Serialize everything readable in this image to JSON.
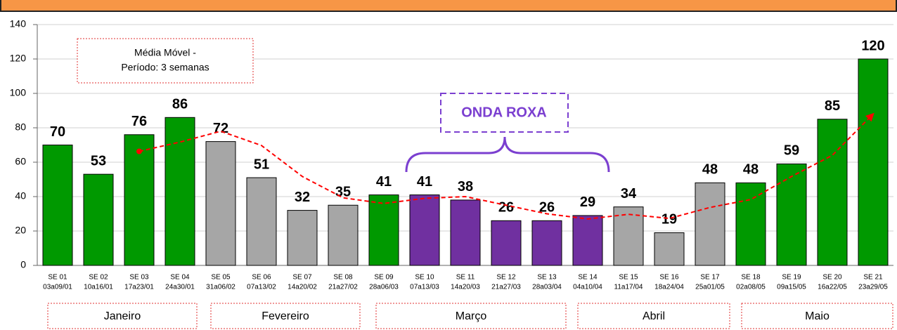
{
  "chart_data": {
    "type": "bar",
    "categories": [
      "SE 01",
      "SE 02",
      "SE 03",
      "SE 04",
      "SE 05",
      "SE 06",
      "SE 07",
      "SE 08",
      "SE 09",
      "SE 10",
      "SE 11",
      "SE 12",
      "SE 13",
      "SE 14",
      "SE 15",
      "SE 16",
      "SE 17",
      "SE 18",
      "SE 19",
      "SE 20",
      "SE 21"
    ],
    "periods": [
      "03a09/01",
      "10a16/01",
      "17a23/01",
      "24a30/01",
      "31a06/02",
      "07a13/02",
      "14a20/02",
      "21a27/02",
      "28a06/03",
      "07a13/03",
      "14a20/03",
      "21a27/03",
      "28a03/04",
      "04a10/04",
      "11a17/04",
      "18a24/04",
      "25a01/05",
      "02a08/05",
      "09a15/05",
      "16a22/05",
      "23a29/05"
    ],
    "values": [
      70,
      53,
      76,
      86,
      72,
      51,
      32,
      35,
      41,
      41,
      38,
      26,
      26,
      29,
      34,
      19,
      48,
      48,
      59,
      85,
      120
    ],
    "colors": [
      "#009900",
      "#009900",
      "#009900",
      "#009900",
      "#a6a6a6",
      "#a6a6a6",
      "#a6a6a6",
      "#a6a6a6",
      "#009900",
      "#7030a0",
      "#7030a0",
      "#7030a0",
      "#7030a0",
      "#7030a0",
      "#a6a6a6",
      "#a6a6a6",
      "#a6a6a6",
      "#009900",
      "#009900",
      "#009900",
      "#009900"
    ],
    "moving_average": {
      "label": [
        "Média Móvel -",
        "Período: 3 semanas"
      ],
      "color": "#ff0000",
      "values": [
        null,
        null,
        66.3,
        71.7,
        78,
        69.7,
        51.7,
        39.3,
        36,
        39,
        40,
        35,
        30,
        27,
        29.7,
        27.3,
        33.7,
        38.3,
        51.7,
        64,
        88
      ]
    },
    "annotation": "ONDA ROXA",
    "months": [
      "Janeiro",
      "Fevereiro",
      "Março",
      "Abril",
      "Maio"
    ],
    "ylim": [
      0,
      140
    ],
    "yticks": [
      0,
      20,
      40,
      60,
      80,
      100,
      120,
      140
    ],
    "grid": true
  }
}
